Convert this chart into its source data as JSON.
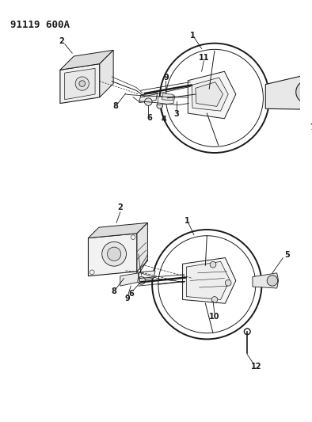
{
  "title": "91119 600A",
  "background_color": "#ffffff",
  "line_color": "#1a1a1a",
  "figsize": [
    3.94,
    5.33
  ],
  "dpi": 100
}
